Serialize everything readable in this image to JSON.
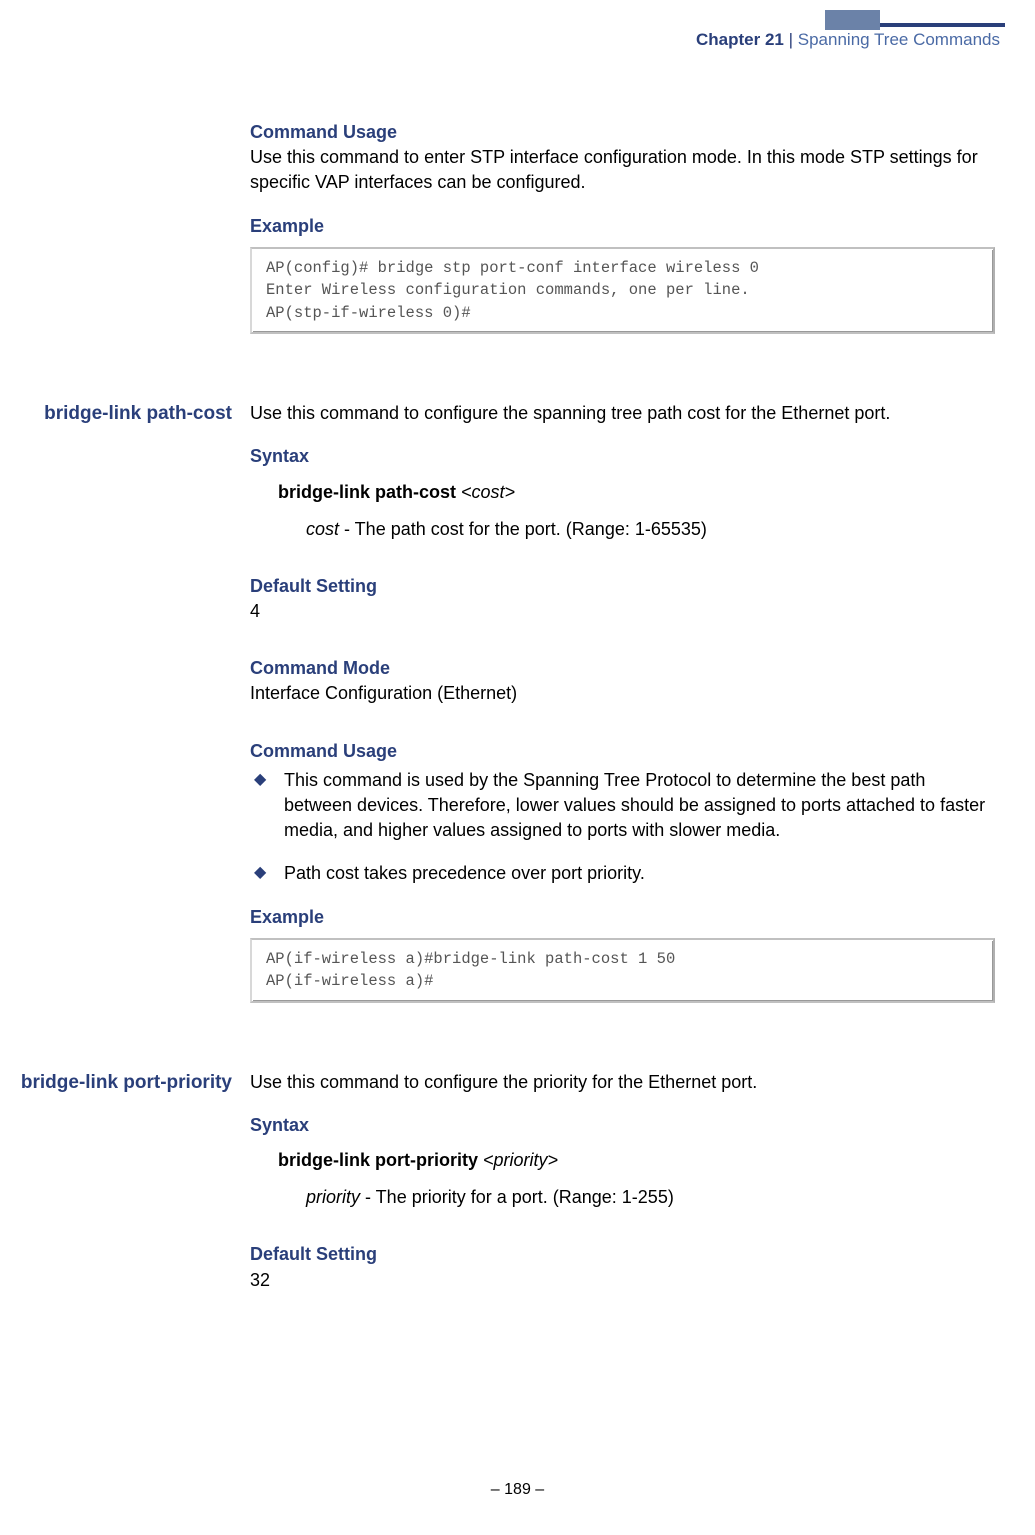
{
  "header": {
    "chapter_num": "Chapter 21",
    "separator": "|",
    "chapter_title": "Spanning Tree Commands"
  },
  "section1": {
    "cmd_usage_head": "Command Usage",
    "cmd_usage_text": "Use this command to enter STP interface configuration mode. In this mode STP settings for specific VAP interfaces can be configured.",
    "example_head": "Example",
    "example_code": "AP(config)# bridge stp port-conf interface wireless 0\nEnter Wireless configuration commands, one per line.\nAP(stp-if-wireless 0)#"
  },
  "section2": {
    "left_label": "bridge-link path-cost",
    "intro": "Use this command to configure the spanning tree path cost for the Ethernet port.",
    "syntax_head": "Syntax",
    "syntax_cmd": "bridge-link path-cost",
    "syntax_arg": "<cost>",
    "param_name": "cost",
    "param_desc": " - The path cost for the port. (Range: 1-65535)",
    "default_head": "Default Setting",
    "default_val": "4",
    "mode_head": "Command Mode",
    "mode_val": "Interface Configuration (Ethernet)",
    "usage_head": "Command Usage",
    "bullet1": "This command is used by the Spanning Tree Protocol to determine the best path between devices. Therefore, lower values should be assigned to ports attached to faster media, and higher values assigned to ports with slower media.",
    "bullet2": "Path cost takes precedence over port priority.",
    "example_head": "Example",
    "example_code": "AP(if-wireless a)#bridge-link path-cost 1 50\nAP(if-wireless a)#"
  },
  "section3": {
    "left_label": "bridge-link port-priority",
    "intro": "Use this command to configure the priority for the Ethernet port.",
    "syntax_head": "Syntax",
    "syntax_cmd": "bridge-link port-priority",
    "syntax_arg": "<priority>",
    "param_name": "priority",
    "param_desc": " - The priority for a port. (Range: 1-255)",
    "default_head": "Default Setting",
    "default_val": "32"
  },
  "footer": {
    "page": "–  189  –"
  },
  "bullet_glyph": "◆"
}
